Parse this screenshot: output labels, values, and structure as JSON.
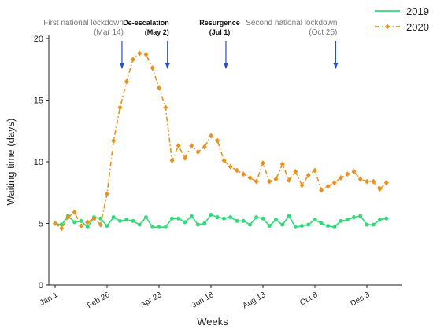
{
  "chart_data": {
    "type": "line",
    "x_label": "Weeks",
    "y_label": "Waiting time (days)",
    "categories": [
      "Jan 1",
      null,
      null,
      null,
      null,
      null,
      null,
      null,
      "Feb 26",
      null,
      null,
      null,
      null,
      null,
      null,
      null,
      "Apr 23",
      null,
      null,
      null,
      null,
      null,
      null,
      null,
      "Jun 18",
      null,
      null,
      null,
      null,
      null,
      null,
      null,
      "Aug 13",
      null,
      null,
      null,
      null,
      null,
      null,
      null,
      "Oct 8",
      null,
      null,
      null,
      null,
      null,
      null,
      null,
      "Dec 3",
      null,
      null,
      null
    ],
    "series": [
      {
        "name": "2019",
        "color": "#2fdc78",
        "marker": "circle",
        "dash": "solid",
        "values": [
          5.0,
          4.9,
          5.6,
          5.1,
          5.2,
          4.7,
          5.5,
          5.4,
          4.8,
          5.5,
          5.2,
          5.3,
          5.2,
          4.9,
          5.5,
          4.7,
          4.7,
          4.7,
          5.4,
          5.4,
          5.1,
          5.6,
          4.9,
          5.0,
          5.7,
          5.5,
          5.4,
          5.5,
          5.2,
          5.2,
          4.9,
          5.5,
          5.4,
          4.8,
          5.3,
          4.9,
          5.6,
          4.7,
          4.8,
          4.9,
          5.3,
          5.0,
          4.8,
          4.7,
          5.2,
          5.3,
          5.5,
          5.6,
          4.9,
          4.9,
          5.3,
          5.4
        ]
      },
      {
        "name": "2020",
        "color": "#e8931e",
        "marker": "diamond",
        "dash": "dashdot",
        "values": [
          5.0,
          4.6,
          5.5,
          5.9,
          4.8,
          5.1,
          5.4,
          4.9,
          7.4,
          11.7,
          14.4,
          16.5,
          18.3,
          18.8,
          18.7,
          17.6,
          16.0,
          14.4,
          10.1,
          11.3,
          10.3,
          11.3,
          10.8,
          11.2,
          12.1,
          11.7,
          10.1,
          9.6,
          9.3,
          9.0,
          8.7,
          8.4,
          9.9,
          8.4,
          8.6,
          9.8,
          8.5,
          9.2,
          8.1,
          8.9,
          9.3,
          7.7,
          8.0,
          8.3,
          8.7,
          9.0,
          9.2,
          8.6,
          8.4,
          8.4,
          7.8,
          8.3
        ]
      }
    ],
    "ylim": [
      0,
      20
    ],
    "yticks": [
      0,
      5,
      10,
      15,
      20
    ],
    "legend": "top-right",
    "annotations": [
      {
        "lines": [
          "First national lockdown",
          "(Mar 14)"
        ],
        "x": 10.3,
        "color": "#777777",
        "weight": "normal"
      },
      {
        "lines": [
          "De-escalation",
          "(May 2)"
        ],
        "x": 17.3,
        "color": "#111111",
        "weight": "bold"
      },
      {
        "lines": [
          "Resurgence",
          "(Jul 1)"
        ],
        "x": 26.3,
        "color": "#111111",
        "weight": "bold"
      },
      {
        "lines": [
          "Second national lockdown",
          "(Oct 25)"
        ],
        "x": 43.2,
        "color": "#777777",
        "weight": "normal"
      }
    ],
    "arrow_color": "#2a4fc4"
  }
}
